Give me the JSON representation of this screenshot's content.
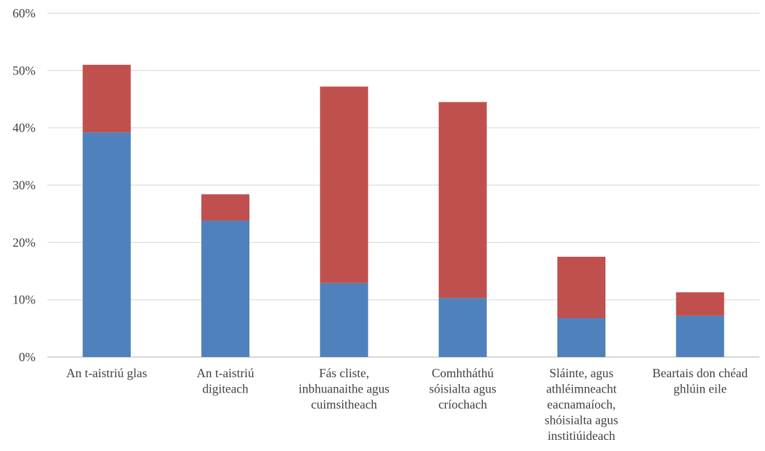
{
  "chart_data": {
    "type": "bar",
    "stacked": true,
    "title": "",
    "xlabel": "",
    "ylabel": "",
    "ylim": [
      0,
      60
    ],
    "y_unit": "%",
    "y_ticks": [
      "0%",
      "10%",
      "20%",
      "30%",
      "40%",
      "50%",
      "60%"
    ],
    "y_tick_values": [
      0,
      10,
      20,
      30,
      40,
      50,
      60
    ],
    "grid": true,
    "legend": "none",
    "categories": [
      [
        "An t-aistriú glas"
      ],
      [
        "An t-aistriú",
        "digiteach"
      ],
      [
        "Fás cliste,",
        "inbhuanaithe agus",
        "cuimsitheach"
      ],
      [
        "Comhtháthú",
        "sóisialta agus",
        "críochach"
      ],
      [
        "Sláinte, agus",
        "athléimneacht",
        "eacnamaíoch,",
        "shóisialta agus",
        "institiúideach"
      ],
      [
        "Beartais don chéad",
        "ghlúin eile"
      ]
    ],
    "series": [
      {
        "values": [
          39.2,
          23.8,
          12.9,
          10.3,
          6.8,
          7.2
        ],
        "color": "#4F81BD"
      },
      {
        "values": [
          11.8,
          4.6,
          34.3,
          34.2,
          10.7,
          4.1
        ],
        "color": "#C0504D"
      }
    ]
  }
}
